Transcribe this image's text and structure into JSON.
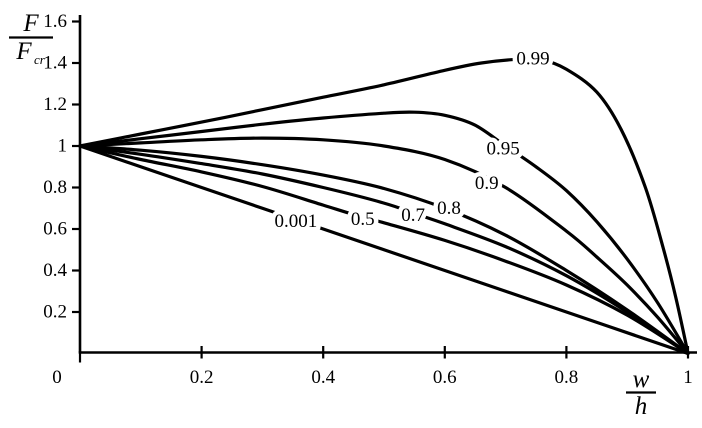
{
  "figure": {
    "background": "#ffffff",
    "ink": "#000000"
  },
  "chart_data": {
    "type": "line",
    "title": "",
    "grid": false,
    "legend": "inline-curve-labels",
    "xlim": [
      0,
      1
    ],
    "ylim": [
      0,
      1.6
    ],
    "xlabel": {
      "numerator": "w",
      "denominator": "h"
    },
    "ylabel": {
      "numerator": "F",
      "denominator": "F",
      "denominator_sub": "cr"
    },
    "origin_label": "0",
    "x_ticks": [
      {
        "label": "0.2",
        "value": 0.2
      },
      {
        "label": "0.4",
        "value": 0.4
      },
      {
        "label": "0.6",
        "value": 0.6
      },
      {
        "label": "0.8",
        "value": 0.8
      },
      {
        "label": "1",
        "value": 1.0
      }
    ],
    "y_ticks": [
      {
        "label": "0.2",
        "value": 0.2
      },
      {
        "label": "0.4",
        "value": 0.4
      },
      {
        "label": "0.6",
        "value": 0.6
      },
      {
        "label": "0.8",
        "value": 0.8
      },
      {
        "label": "1",
        "value": 1.0
      },
      {
        "label": "1.2",
        "value": 1.2
      },
      {
        "label": "1.4",
        "value": 1.4
      },
      {
        "label": "1.6",
        "value": 1.6
      }
    ],
    "series": [
      {
        "name": "0.001",
        "label_anchor": [
          0.355,
          0.635
        ],
        "points": [
          [
            0,
            1
          ],
          [
            0.2,
            0.8
          ],
          [
            0.4,
            0.6
          ],
          [
            0.6,
            0.4
          ],
          [
            0.8,
            0.2
          ],
          [
            1,
            0
          ]
        ]
      },
      {
        "name": "0.5",
        "label_anchor": [
          0.465,
          0.645
        ],
        "points": [
          [
            0,
            1
          ],
          [
            0.1,
            0.935
          ],
          [
            0.2,
            0.875
          ],
          [
            0.3,
            0.805
          ],
          [
            0.4,
            0.715
          ],
          [
            0.45,
            0.67
          ],
          [
            0.5,
            0.63
          ],
          [
            0.6,
            0.545
          ],
          [
            0.7,
            0.445
          ],
          [
            0.8,
            0.33
          ],
          [
            0.9,
            0.185
          ],
          [
            1,
            0
          ]
        ]
      },
      {
        "name": "0.7",
        "label_anchor": [
          0.548,
          0.665
        ],
        "points": [
          [
            0,
            1
          ],
          [
            0.1,
            0.96
          ],
          [
            0.2,
            0.915
          ],
          [
            0.3,
            0.865
          ],
          [
            0.4,
            0.8
          ],
          [
            0.5,
            0.725
          ],
          [
            0.55,
            0.675
          ],
          [
            0.6,
            0.625
          ],
          [
            0.7,
            0.515
          ],
          [
            0.8,
            0.375
          ],
          [
            0.9,
            0.2
          ],
          [
            1,
            0
          ]
        ]
      },
      {
        "name": "0.8",
        "label_anchor": [
          0.607,
          0.7
        ],
        "points": [
          [
            0,
            1
          ],
          [
            0.1,
            0.98
          ],
          [
            0.2,
            0.95
          ],
          [
            0.3,
            0.91
          ],
          [
            0.4,
            0.86
          ],
          [
            0.5,
            0.795
          ],
          [
            0.6,
            0.7
          ],
          [
            0.7,
            0.57
          ],
          [
            0.8,
            0.4
          ],
          [
            0.9,
            0.21
          ],
          [
            1,
            0
          ]
        ]
      },
      {
        "name": "0.9",
        "label_anchor": [
          0.669,
          0.82
        ],
        "points": [
          [
            0,
            1
          ],
          [
            0.1,
            1.015
          ],
          [
            0.2,
            1.03
          ],
          [
            0.3,
            1.038
          ],
          [
            0.4,
            1.03
          ],
          [
            0.5,
            1.0
          ],
          [
            0.6,
            0.935
          ],
          [
            0.7,
            0.8
          ],
          [
            0.8,
            0.59
          ],
          [
            0.85,
            0.465
          ],
          [
            0.9,
            0.33
          ],
          [
            0.95,
            0.175
          ],
          [
            1,
            0
          ]
        ]
      },
      {
        "name": "0.95",
        "label_anchor": [
          0.696,
          0.985
        ],
        "points": [
          [
            0,
            1
          ],
          [
            0.1,
            1.035
          ],
          [
            0.2,
            1.07
          ],
          [
            0.3,
            1.105
          ],
          [
            0.4,
            1.135
          ],
          [
            0.5,
            1.158
          ],
          [
            0.55,
            1.163
          ],
          [
            0.6,
            1.148
          ],
          [
            0.65,
            1.1
          ],
          [
            0.7,
            1.0
          ],
          [
            0.75,
            0.9
          ],
          [
            0.8,
            0.785
          ],
          [
            0.85,
            0.635
          ],
          [
            0.9,
            0.455
          ],
          [
            0.95,
            0.245
          ],
          [
            1,
            0
          ]
        ]
      },
      {
        "name": "0.99",
        "label_anchor": [
          0.745,
          1.42
        ],
        "points": [
          [
            0,
            1
          ],
          [
            0.1,
            1.058
          ],
          [
            0.2,
            1.115
          ],
          [
            0.3,
            1.175
          ],
          [
            0.4,
            1.235
          ],
          [
            0.5,
            1.295
          ],
          [
            0.6,
            1.365
          ],
          [
            0.66,
            1.4
          ],
          [
            0.72,
            1.418
          ],
          [
            0.76,
            1.415
          ],
          [
            0.8,
            1.37
          ],
          [
            0.85,
            1.26
          ],
          [
            0.89,
            1.08
          ],
          [
            0.93,
            0.8
          ],
          [
            0.96,
            0.5
          ],
          [
            0.98,
            0.27
          ],
          [
            1,
            0
          ]
        ]
      }
    ]
  }
}
